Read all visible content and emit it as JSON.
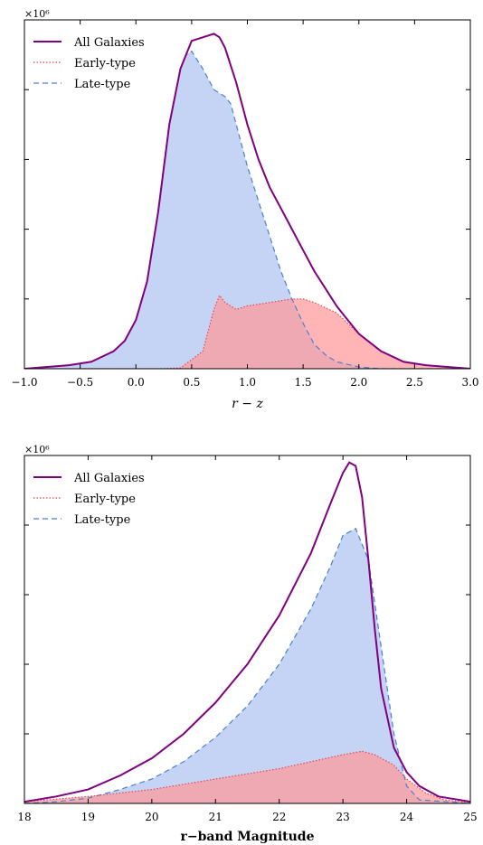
{
  "colors": {
    "all": "#800080",
    "early_line": "#e8484d",
    "early_fill": "#ff9999",
    "late_line": "#4a7fd4",
    "late_fill": "#a6bcf0"
  },
  "chart_data": [
    {
      "type": "area",
      "xlabel": "r − z",
      "ylabel": "",
      "y_exponent_label": "×10⁶",
      "xlim": [
        -1.0,
        3.0
      ],
      "ylim": [
        0,
        1.0
      ],
      "x_ticks": [
        "−1.0",
        "−0.5",
        "0.0",
        "0.5",
        "1.0",
        "1.5",
        "2.0",
        "2.5",
        "3.0"
      ],
      "y_tick_count": 5,
      "legend": {
        "position": "top-left",
        "entries": [
          "All Galaxies",
          "Early-type",
          "Late-type"
        ]
      },
      "series": [
        {
          "name": "All Galaxies",
          "x": [
            -1.0,
            -0.6,
            -0.4,
            -0.2,
            -0.1,
            0.0,
            0.1,
            0.2,
            0.3,
            0.4,
            0.5,
            0.6,
            0.7,
            0.75,
            0.8,
            0.9,
            1.0,
            1.1,
            1.2,
            1.3,
            1.4,
            1.5,
            1.6,
            1.7,
            1.8,
            1.9,
            2.0,
            2.2,
            2.4,
            2.6,
            3.0
          ],
          "values": [
            0.0,
            0.01,
            0.02,
            0.05,
            0.08,
            0.14,
            0.25,
            0.45,
            0.7,
            0.86,
            0.94,
            0.95,
            0.96,
            0.95,
            0.92,
            0.82,
            0.7,
            0.6,
            0.52,
            0.46,
            0.4,
            0.34,
            0.28,
            0.23,
            0.18,
            0.14,
            0.1,
            0.05,
            0.02,
            0.01,
            0.0
          ]
        },
        {
          "name": "Early-type",
          "x": [
            -1.0,
            0.2,
            0.4,
            0.6,
            0.7,
            0.75,
            0.8,
            0.9,
            1.0,
            1.2,
            1.4,
            1.5,
            1.6,
            1.8,
            2.0,
            2.2,
            2.4,
            2.6,
            3.0
          ],
          "values": [
            0.0,
            0.0,
            0.002,
            0.05,
            0.17,
            0.21,
            0.19,
            0.17,
            0.18,
            0.19,
            0.2,
            0.2,
            0.19,
            0.16,
            0.1,
            0.05,
            0.02,
            0.01,
            0.0
          ]
        },
        {
          "name": "Late-type",
          "x": [
            -1.0,
            -0.6,
            -0.4,
            -0.2,
            -0.1,
            0.0,
            0.1,
            0.2,
            0.3,
            0.4,
            0.45,
            0.5,
            0.6,
            0.7,
            0.8,
            0.85,
            0.9,
            1.0,
            1.1,
            1.2,
            1.3,
            1.4,
            1.5,
            1.6,
            1.7,
            1.8,
            2.0,
            2.2,
            3.0
          ],
          "values": [
            0.0,
            0.01,
            0.02,
            0.05,
            0.08,
            0.14,
            0.25,
            0.45,
            0.7,
            0.86,
            0.9,
            0.91,
            0.86,
            0.8,
            0.78,
            0.76,
            0.7,
            0.58,
            0.48,
            0.38,
            0.28,
            0.2,
            0.13,
            0.07,
            0.04,
            0.02,
            0.005,
            0.0,
            0.0
          ]
        }
      ]
    },
    {
      "type": "area",
      "xlabel": "r−band Magnitude",
      "ylabel": "",
      "y_exponent_label": "×10⁶",
      "xlim": [
        18,
        25
      ],
      "ylim": [
        0,
        1.0
      ],
      "x_ticks": [
        "18",
        "19",
        "20",
        "21",
        "22",
        "23",
        "24",
        "25"
      ],
      "y_tick_count": 5,
      "legend": {
        "position": "top-left",
        "entries": [
          "All Galaxies",
          "Early-type",
          "Late-type"
        ]
      },
      "series": [
        {
          "name": "All Galaxies",
          "x": [
            18.0,
            18.5,
            19.0,
            19.5,
            20.0,
            20.5,
            21.0,
            21.5,
            22.0,
            22.5,
            22.8,
            23.0,
            23.1,
            23.2,
            23.3,
            23.4,
            23.5,
            23.6,
            23.8,
            24.0,
            24.2,
            24.5,
            25.0
          ],
          "values": [
            0.005,
            0.02,
            0.04,
            0.08,
            0.13,
            0.2,
            0.29,
            0.4,
            0.54,
            0.72,
            0.86,
            0.95,
            0.98,
            0.97,
            0.88,
            0.7,
            0.5,
            0.33,
            0.16,
            0.09,
            0.05,
            0.02,
            0.005
          ]
        },
        {
          "name": "Early-type",
          "x": [
            18.0,
            19.0,
            20.0,
            21.0,
            22.0,
            22.5,
            23.0,
            23.3,
            23.5,
            23.8,
            24.0,
            24.3,
            24.6,
            25.0
          ],
          "values": [
            0.005,
            0.02,
            0.04,
            0.07,
            0.1,
            0.12,
            0.14,
            0.15,
            0.14,
            0.11,
            0.07,
            0.03,
            0.01,
            0.003
          ]
        },
        {
          "name": "Late-type",
          "x": [
            18.0,
            18.5,
            19.0,
            19.5,
            20.0,
            20.5,
            21.0,
            21.5,
            22.0,
            22.5,
            22.8,
            23.0,
            23.2,
            23.4,
            23.6,
            23.8,
            24.0,
            24.2,
            25.0
          ],
          "values": [
            0.0,
            0.005,
            0.015,
            0.04,
            0.07,
            0.12,
            0.19,
            0.28,
            0.4,
            0.56,
            0.68,
            0.77,
            0.79,
            0.7,
            0.45,
            0.2,
            0.05,
            0.01,
            0.0
          ]
        }
      ]
    }
  ]
}
